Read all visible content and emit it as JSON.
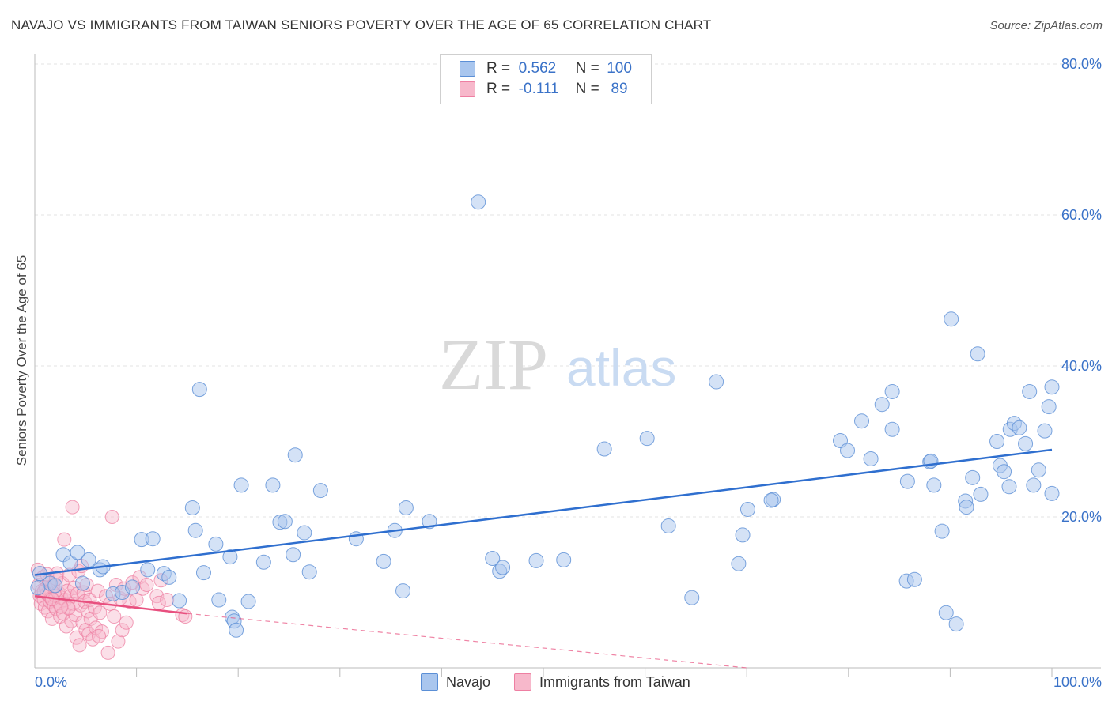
{
  "title": "NAVAJO VS IMMIGRANTS FROM TAIWAN SENIORS POVERTY OVER THE AGE OF 65 CORRELATION CHART",
  "source": "Source: ZipAtlas.com",
  "legend": {
    "rows": [
      {
        "r_label": "R =",
        "r_value": "0.562",
        "n_label": "N =",
        "n_value": "100"
      },
      {
        "r_label": "R =",
        "r_value": "-0.111",
        "n_label": "N =",
        "n_value": "89"
      }
    ]
  },
  "watermark": {
    "zip": "ZIP",
    "atlas": "atlas"
  },
  "colors": {
    "navajo_fill": "#a9c6ee",
    "navajo_stroke": "#5b8fd6",
    "navajo_line": "#2f6fcf",
    "taiwan_fill": "#f7b8cb",
    "taiwan_stroke": "#ee7fa2",
    "taiwan_line": "#e8507f",
    "axis_label": "#3a72c8",
    "grid": "#e3e3e3"
  },
  "chart_data": {
    "type": "scatter",
    "title": "NAVAJO VS IMMIGRANTS FROM TAIWAN SENIORS POVERTY OVER THE AGE OF 65 CORRELATION CHART",
    "xlabel": "",
    "ylabel": "Seniors Poverty Over the Age of 65",
    "xlim": [
      0,
      100
    ],
    "ylim": [
      0,
      84
    ],
    "x_tick_labels": [
      "0.0%",
      "100.0%"
    ],
    "y_ticks": [
      20,
      40,
      60,
      80
    ],
    "y_tick_labels": [
      "20.0%",
      "40.0%",
      "60.0%",
      "80.0%"
    ],
    "grid": true,
    "legend_position": "bottom",
    "series": [
      {
        "name": "Navajo",
        "r": 0.562,
        "n": 100,
        "trend": {
          "x": [
            0,
            100
          ],
          "y": [
            12.3,
            28.9
          ]
        },
        "points": [
          [
            0.5,
            12.5
          ],
          [
            1.5,
            11.2
          ],
          [
            2.0,
            10.9
          ],
          [
            2.8,
            15.0
          ],
          [
            3.5,
            13.9
          ],
          [
            4.2,
            15.3
          ],
          [
            5.3,
            14.3
          ],
          [
            6.4,
            13.0
          ],
          [
            6.7,
            13.4
          ],
          [
            7.7,
            9.8
          ],
          [
            8.6,
            10.0
          ],
          [
            9.6,
            10.7
          ],
          [
            10.5,
            17.0
          ],
          [
            11.1,
            13.0
          ],
          [
            11.6,
            17.1
          ],
          [
            12.7,
            12.5
          ],
          [
            13.2,
            12.0
          ],
          [
            14.2,
            8.9
          ],
          [
            15.5,
            21.2
          ],
          [
            15.8,
            18.2
          ],
          [
            16.6,
            12.6
          ],
          [
            17.8,
            16.4
          ],
          [
            19.2,
            14.7
          ],
          [
            16.2,
            36.9
          ],
          [
            18.1,
            9.0
          ],
          [
            19.4,
            6.7
          ],
          [
            19.6,
            6.2
          ],
          [
            19.8,
            5.0
          ],
          [
            20.3,
            24.2
          ],
          [
            21.0,
            8.8
          ],
          [
            22.5,
            14.0
          ],
          [
            23.4,
            24.2
          ],
          [
            24.1,
            19.3
          ],
          [
            24.6,
            19.4
          ],
          [
            25.4,
            15.0
          ],
          [
            25.6,
            28.2
          ],
          [
            26.5,
            17.9
          ],
          [
            27.0,
            12.7
          ],
          [
            28.1,
            23.5
          ],
          [
            31.6,
            17.1
          ],
          [
            34.3,
            14.1
          ],
          [
            35.4,
            18.2
          ],
          [
            36.2,
            10.2
          ],
          [
            36.5,
            21.2
          ],
          [
            38.8,
            19.4
          ],
          [
            43.6,
            61.7
          ],
          [
            45.0,
            14.5
          ],
          [
            45.7,
            12.8
          ],
          [
            46.0,
            13.3
          ],
          [
            52.0,
            14.3
          ],
          [
            56.0,
            29.0
          ],
          [
            60.2,
            30.4
          ],
          [
            62.3,
            18.8
          ],
          [
            64.6,
            9.3
          ],
          [
            67.0,
            37.9
          ],
          [
            69.2,
            13.8
          ],
          [
            69.6,
            17.6
          ],
          [
            70.1,
            21.0
          ],
          [
            72.6,
            22.3
          ],
          [
            79.2,
            30.1
          ],
          [
            79.9,
            28.8
          ],
          [
            81.3,
            32.7
          ],
          [
            82.2,
            27.7
          ],
          [
            83.3,
            34.9
          ],
          [
            84.3,
            36.6
          ],
          [
            84.3,
            31.6
          ],
          [
            85.8,
            24.7
          ],
          [
            85.7,
            11.5
          ],
          [
            86.5,
            11.7
          ],
          [
            88.0,
            27.3
          ],
          [
            88.4,
            24.2
          ],
          [
            89.2,
            18.1
          ],
          [
            89.6,
            7.3
          ],
          [
            90.1,
            46.2
          ],
          [
            90.6,
            5.8
          ],
          [
            91.5,
            22.1
          ],
          [
            91.6,
            21.3
          ],
          [
            92.2,
            25.2
          ],
          [
            92.7,
            41.6
          ],
          [
            93.0,
            23.0
          ],
          [
            94.6,
            30.0
          ],
          [
            94.9,
            26.8
          ],
          [
            95.3,
            26.0
          ],
          [
            95.9,
            31.6
          ],
          [
            96.3,
            32.4
          ],
          [
            96.8,
            31.8
          ],
          [
            97.4,
            29.7
          ],
          [
            97.8,
            36.6
          ],
          [
            98.2,
            24.2
          ],
          [
            98.7,
            26.2
          ],
          [
            99.3,
            31.4
          ],
          [
            99.7,
            34.6
          ],
          [
            100.0,
            37.2
          ],
          [
            100.0,
            23.1
          ],
          [
            95.8,
            24.0
          ],
          [
            88.1,
            27.4
          ],
          [
            72.4,
            22.2
          ],
          [
            49.3,
            14.2
          ],
          [
            0.3,
            10.6
          ],
          [
            4.7,
            11.2
          ]
        ]
      },
      {
        "name": "Immigrants from Taiwan",
        "r": -0.111,
        "n": 89,
        "trend": {
          "x": [
            0,
            15
          ],
          "y": [
            9.5,
            7.2
          ]
        },
        "trend_extension": {
          "x": [
            15,
            70
          ],
          "y": [
            7.2,
            0
          ]
        },
        "points": [
          [
            0.3,
            13.0
          ],
          [
            0.4,
            11.0
          ],
          [
            0.5,
            9.5
          ],
          [
            0.6,
            8.5
          ],
          [
            0.7,
            10.2
          ],
          [
            0.8,
            12.0
          ],
          [
            0.9,
            9.0
          ],
          [
            1.0,
            8.0
          ],
          [
            1.1,
            10.5
          ],
          [
            1.2,
            9.8
          ],
          [
            1.3,
            7.5
          ],
          [
            1.4,
            11.5
          ],
          [
            1.5,
            8.8
          ],
          [
            1.6,
            9.2
          ],
          [
            1.7,
            6.5
          ],
          [
            1.8,
            10.8
          ],
          [
            1.9,
            8.2
          ],
          [
            2.0,
            9.6
          ],
          [
            2.1,
            7.8
          ],
          [
            2.2,
            12.5
          ],
          [
            2.3,
            10.0
          ],
          [
            2.4,
            8.6
          ],
          [
            2.5,
            6.8
          ],
          [
            2.6,
            9.3
          ],
          [
            2.7,
            11.2
          ],
          [
            2.8,
            7.2
          ],
          [
            2.9,
            17.0
          ],
          [
            3.0,
            9.0
          ],
          [
            3.1,
            5.5
          ],
          [
            3.2,
            10.2
          ],
          [
            3.3,
            8.0
          ],
          [
            3.4,
            12.3
          ],
          [
            3.5,
            9.5
          ],
          [
            3.6,
            6.2
          ],
          [
            3.7,
            21.3
          ],
          [
            3.8,
            8.5
          ],
          [
            3.9,
            10.6
          ],
          [
            4.0,
            7.0
          ],
          [
            4.1,
            4.0
          ],
          [
            4.2,
            9.8
          ],
          [
            4.3,
            12.8
          ],
          [
            4.4,
            3.0
          ],
          [
            4.5,
            8.3
          ],
          [
            4.6,
            13.5
          ],
          [
            4.7,
            6.0
          ],
          [
            4.8,
            10.0
          ],
          [
            4.9,
            8.8
          ],
          [
            5.0,
            5.0
          ],
          [
            5.1,
            11.0
          ],
          [
            5.2,
            7.5
          ],
          [
            5.3,
            4.5
          ],
          [
            5.4,
            9.0
          ],
          [
            5.5,
            6.5
          ],
          [
            5.7,
            3.8
          ],
          [
            5.9,
            8.0
          ],
          [
            6.0,
            5.3
          ],
          [
            6.2,
            10.2
          ],
          [
            6.4,
            7.3
          ],
          [
            6.6,
            4.8
          ],
          [
            7.0,
            9.5
          ],
          [
            7.2,
            2.0
          ],
          [
            7.4,
            8.5
          ],
          [
            7.6,
            20.0
          ],
          [
            7.8,
            6.8
          ],
          [
            8.0,
            11.0
          ],
          [
            8.2,
            3.5
          ],
          [
            8.4,
            9.2
          ],
          [
            8.6,
            5.0
          ],
          [
            8.8,
            10.5
          ],
          [
            9.0,
            6.0
          ],
          [
            9.3,
            8.8
          ],
          [
            9.6,
            11.3
          ],
          [
            10.0,
            9.0
          ],
          [
            10.3,
            12.0
          ],
          [
            10.6,
            10.5
          ],
          [
            11.0,
            11.0
          ],
          [
            12.0,
            9.5
          ],
          [
            12.2,
            8.6
          ],
          [
            12.4,
            11.6
          ],
          [
            13.0,
            9.0
          ],
          [
            14.5,
            7.0
          ],
          [
            14.8,
            6.8
          ],
          [
            1.2,
            12.4
          ],
          [
            2.1,
            11.8
          ],
          [
            3.3,
            7.9
          ],
          [
            0.9,
            10.1
          ],
          [
            1.7,
            9.1
          ],
          [
            2.6,
            8.1
          ],
          [
            6.3,
            4.2
          ]
        ]
      }
    ]
  },
  "bottom_legend": [
    {
      "label": "Navajo"
    },
    {
      "label": "Immigrants from Taiwan"
    }
  ]
}
